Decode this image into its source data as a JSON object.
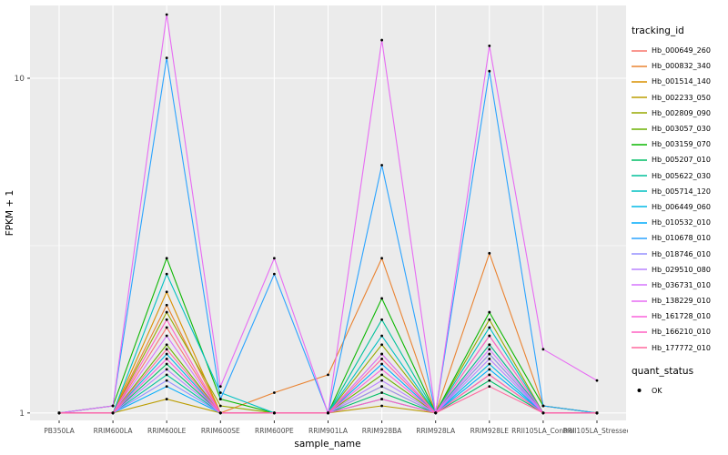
{
  "style": {
    "panel_bg": "#EBEBEB",
    "grid_color": "#FFFFFF",
    "tick_text_color": "#4D4D4D",
    "point_color": "#000000"
  },
  "legend": {
    "tracking_title": "tracking_id",
    "quant_title": "quant_status",
    "quant_items": [
      "OK"
    ]
  },
  "chart_data": {
    "type": "line",
    "title": "",
    "x_label": "sample_name",
    "y_label": "FPKM + 1",
    "y_scale": "log10",
    "ylim": [
      0.95,
      16.5
    ],
    "y_major_ticks": [
      1,
      10
    ],
    "y_minor_ticks": [
      3.162
    ],
    "grid": true,
    "legend_position": "right",
    "point_marker": {
      "shape": "dot",
      "color": "#000000",
      "legend_label": "OK"
    },
    "categories": [
      "PB350LA",
      "RRIM600LA",
      "RRIM600LE",
      "RRIM600SE",
      "RRIM600PE",
      "RRIM901LA",
      "RRIM928BA",
      "RRIM928LA",
      "RRIM928LE",
      "RRII105LA_Control",
      "RRII105LA_Stressed"
    ],
    "series": [
      {
        "name": "Hb_000649_260",
        "color": "#F8766D",
        "values": [
          1,
          1,
          1.8,
          1,
          1,
          1,
          1.5,
          1,
          1.6,
          1,
          1
        ]
      },
      {
        "name": "Hb_000832_340",
        "color": "#EA8331",
        "values": [
          1,
          1,
          2.1,
          1,
          1.15,
          1.3,
          2.9,
          1,
          3.0,
          1.05,
          1
        ]
      },
      {
        "name": "Hb_001514_140",
        "color": "#D89000",
        "values": [
          1,
          1,
          2.3,
          1,
          1,
          1,
          1.2,
          1,
          1.7,
          1,
          1
        ]
      },
      {
        "name": "Hb_002233_050",
        "color": "#BB9D00",
        "values": [
          1,
          1,
          1.1,
          1,
          1,
          1,
          1.05,
          1,
          1.3,
          1,
          1
        ]
      },
      {
        "name": "Hb_002809_090",
        "color": "#97A900",
        "values": [
          1,
          1,
          2.0,
          1.05,
          1,
          1,
          1.6,
          1,
          1.9,
          1,
          1
        ]
      },
      {
        "name": "Hb_003057_030",
        "color": "#6BB100",
        "values": [
          1,
          1,
          1.6,
          1,
          1,
          1,
          1.3,
          1,
          1.5,
          1,
          1
        ]
      },
      {
        "name": "Hb_003159_070",
        "color": "#0CB702",
        "values": [
          1,
          1.05,
          2.9,
          1.1,
          1,
          1,
          2.2,
          1,
          2.0,
          1.05,
          1
        ]
      },
      {
        "name": "Hb_005207_010",
        "color": "#00BE67",
        "values": [
          1,
          1,
          1.4,
          1,
          1,
          1,
          1.15,
          1,
          1.25,
          1,
          1
        ]
      },
      {
        "name": "Hb_005622_030",
        "color": "#00C19A",
        "values": [
          1,
          1,
          1.3,
          1,
          1,
          1,
          1.9,
          1,
          1.6,
          1,
          1
        ]
      },
      {
        "name": "Hb_005714_120",
        "color": "#00C0C2",
        "values": [
          1,
          1,
          2.6,
          1.15,
          1,
          1,
          1.7,
          1,
          1.8,
          1,
          1
        ]
      },
      {
        "name": "Hb_006449_060",
        "color": "#00B8E5",
        "values": [
          1,
          1,
          1.5,
          1,
          1,
          1,
          1.1,
          1,
          1.4,
          1,
          1
        ]
      },
      {
        "name": "Hb_010532_010",
        "color": "#00ACFC",
        "values": [
          1,
          1,
          1.2,
          1,
          1,
          1,
          1.4,
          1,
          1.35,
          1,
          1
        ]
      },
      {
        "name": "Hb_010678_010",
        "color": "#2AA3FF",
        "values": [
          1,
          1.05,
          11.5,
          1.1,
          2.6,
          1,
          5.5,
          1,
          10.5,
          1.05,
          1
        ]
      },
      {
        "name": "Hb_018746_010",
        "color": "#9590FF",
        "values": [
          1,
          1,
          1.25,
          1,
          1,
          1,
          1.2,
          1,
          1.5,
          1,
          1
        ]
      },
      {
        "name": "Hb_029510_080",
        "color": "#B983FF",
        "values": [
          1,
          1,
          1.35,
          1,
          1,
          1,
          1.25,
          1,
          1.45,
          1,
          1
        ]
      },
      {
        "name": "Hb_036731_010",
        "color": "#D575FE",
        "values": [
          1,
          1,
          1.7,
          1,
          1,
          1,
          1.5,
          1,
          1.55,
          1,
          1
        ]
      },
      {
        "name": "Hb_138229_010",
        "color": "#E76BF3",
        "values": [
          1,
          1.05,
          15.5,
          1.2,
          2.9,
          1,
          13.0,
          1,
          12.5,
          1.55,
          1.25
        ]
      },
      {
        "name": "Hb_161728_010",
        "color": "#FA62DB",
        "values": [
          1,
          1,
          1.45,
          1,
          1,
          1,
          1.35,
          1,
          1.7,
          1,
          1
        ]
      },
      {
        "name": "Hb_166210_010",
        "color": "#FF61C2",
        "values": [
          1,
          1,
          1.9,
          1,
          1,
          1,
          1.1,
          1,
          1.3,
          1,
          1
        ]
      },
      {
        "name": "Hb_177772_010",
        "color": "#FF689E",
        "values": [
          1,
          1,
          1.55,
          1,
          1,
          1,
          1.45,
          1,
          1.2,
          1,
          1
        ]
      }
    ]
  }
}
